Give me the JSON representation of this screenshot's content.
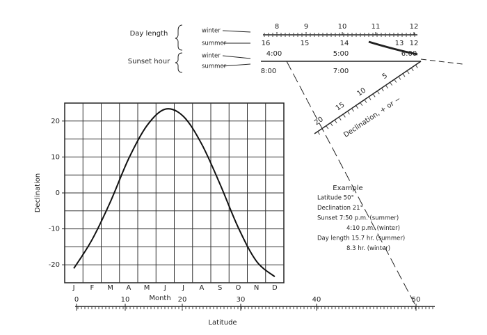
{
  "top_scales": {
    "day_length": {
      "label": "Day length",
      "winter": "winter",
      "summer": "summer",
      "winter_ticks": [
        "8",
        "9",
        "10",
        "11",
        "12"
      ],
      "summer_ticks": [
        "16",
        "15",
        "14",
        "13",
        "12"
      ]
    },
    "sunset_hour": {
      "label": "Sunset hour",
      "winter": "winter",
      "summer": "summer",
      "winter_ticks": [
        "4:00",
        "5:00",
        "6:00"
      ],
      "summer_ticks": [
        "8:00",
        "7:00"
      ]
    },
    "declination": {
      "label": "Declination, + or −",
      "ticks": [
        "5",
        "10",
        "15",
        "20"
      ]
    }
  },
  "declination_chart": {
    "ylabel": "Declination",
    "xlabel": "Month",
    "ylim": [
      -25,
      25
    ],
    "yticks": [
      20,
      10,
      0,
      -10,
      -20
    ],
    "months": [
      "J",
      "F",
      "M",
      "A",
      "M",
      "J",
      "J",
      "A",
      "S",
      "O",
      "N",
      "D"
    ],
    "values": [
      -21,
      -13,
      -2.5,
      9.5,
      18.7,
      23.3,
      21.3,
      13.6,
      2.5,
      -9.6,
      -19,
      -23.3
    ]
  },
  "latitude_scale": {
    "label": "Latitude",
    "ticks": [
      "0",
      "10",
      "20",
      "30",
      "40",
      "50"
    ]
  },
  "example": {
    "title": "Example",
    "lines": [
      "Latitude 50°",
      "Declination 21°",
      "Sunset 7:50 p.m. (summer)",
      "4:10 p.m. (winter)",
      "Day length 15.7 hr. (summer)",
      "8.3 hr. (winter)"
    ]
  }
}
